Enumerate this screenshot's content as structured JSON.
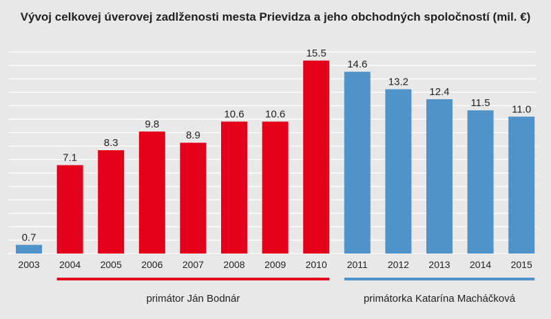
{
  "chart_data": {
    "type": "bar",
    "title": "Vývoj celkovej úverovej zadlženosti mesta Prievidza a jeho obchodných spoločností (mil. €)",
    "categories": [
      "2003",
      "2004",
      "2005",
      "2006",
      "2007",
      "2008",
      "2009",
      "2010",
      "2011",
      "2012",
      "2013",
      "2014",
      "2015"
    ],
    "values": [
      0.7,
      7.1,
      8.3,
      9.8,
      8.9,
      10.6,
      10.6,
      15.5,
      14.6,
      13.2,
      12.4,
      11.5,
      11.0
    ],
    "value_labels": [
      "0.7",
      "7.1",
      "8.3",
      "9.8",
      "8.9",
      "10.6",
      "10.6",
      "15.5",
      "14.6",
      "13.2",
      "12.4",
      "11.5",
      "11.0"
    ],
    "bar_colors": [
      "#4f93c8",
      "#e2001a",
      "#e2001a",
      "#e2001a",
      "#e2001a",
      "#e2001a",
      "#e2001a",
      "#e2001a",
      "#4f93c8",
      "#4f93c8",
      "#4f93c8",
      "#4f93c8",
      "#4f93c8"
    ],
    "ylim": [
      0,
      17.6
    ],
    "grid": true,
    "groups": [
      {
        "label": "primátor Ján Bodnár",
        "start_index": 1,
        "end_index": 7,
        "color": "#e2001a"
      },
      {
        "label": "primátorka Katarína Macháčková",
        "start_index": 8,
        "end_index": 12,
        "color": "#4f93c8"
      }
    ],
    "colors": {
      "background": "#e8e8e8",
      "grid": "#ffffff",
      "text": "#222222"
    }
  }
}
